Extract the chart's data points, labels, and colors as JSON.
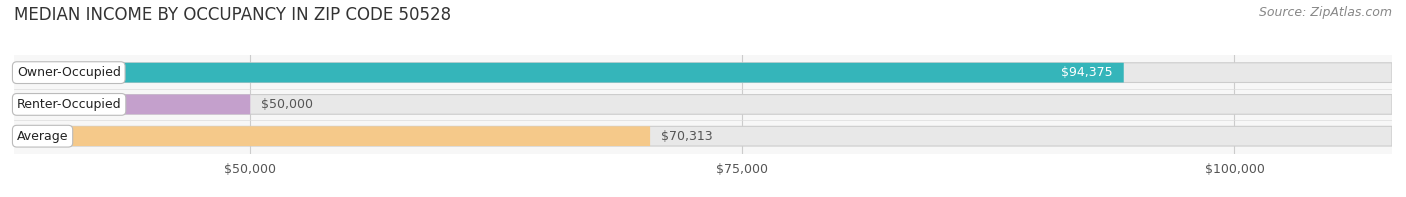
{
  "title": "MEDIAN INCOME BY OCCUPANCY IN ZIP CODE 50528",
  "source": "Source: ZipAtlas.com",
  "categories": [
    "Owner-Occupied",
    "Renter-Occupied",
    "Average"
  ],
  "values": [
    94375,
    50000,
    70313
  ],
  "bar_colors": [
    "#35b5ba",
    "#c4a0cc",
    "#f5c98a"
  ],
  "bar_bg_color": "#e8e8e8",
  "value_labels": [
    "$94,375",
    "$50,000",
    "$70,313"
  ],
  "value_label_colors": [
    "white",
    "#555555",
    "#555555"
  ],
  "value_inside": [
    true,
    false,
    false
  ],
  "x_ticks": [
    50000,
    75000,
    100000
  ],
  "x_tick_labels": [
    "$50,000",
    "$75,000",
    "$100,000"
  ],
  "xmin": 38000,
  "xmax": 108000,
  "title_fontsize": 12,
  "label_fontsize": 9,
  "tick_fontsize": 9,
  "source_fontsize": 9,
  "background_color": "#ffffff",
  "plot_bg_color": "#f7f7f7",
  "bar_height": 0.62
}
